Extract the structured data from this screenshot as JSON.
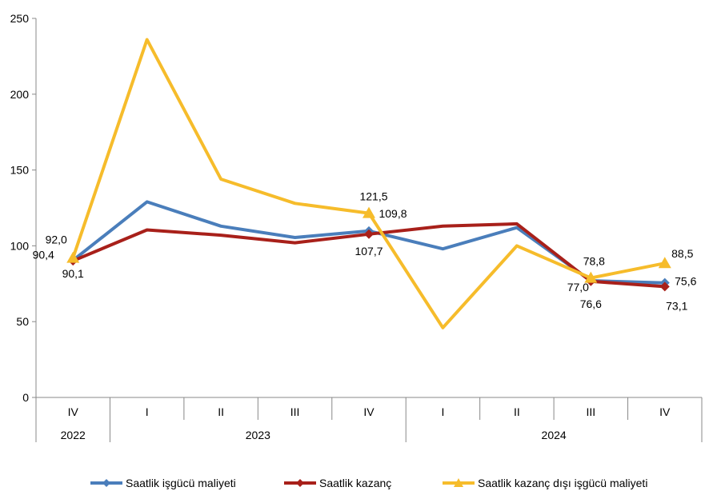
{
  "chart_data": {
    "type": "line",
    "ylim": [
      0,
      250
    ],
    "yticks": [
      "0",
      "50",
      "100",
      "150",
      "200",
      "250"
    ],
    "categories": [
      "IV",
      "I",
      "II",
      "III",
      "IV",
      "I",
      "II",
      "III",
      "IV"
    ],
    "year_groups": [
      {
        "label": "2022",
        "start": 0,
        "end": 0
      },
      {
        "label": "2023",
        "start": 1,
        "end": 4
      },
      {
        "label": "2024",
        "start": 5,
        "end": 8
      }
    ],
    "series": [
      {
        "name": "Saatlik işgücü maliyeti",
        "color": "#4a7ebb",
        "marker": "diamond",
        "values": [
          90.4,
          129,
          113,
          105.5,
          109.8,
          98,
          112,
          77.0,
          75.6
        ],
        "labels": {
          "0": "90,4",
          "4": "109,8",
          "7": "77,0",
          "8": "75,6"
        }
      },
      {
        "name": "Saatlik kazanç",
        "color": "#a8201a",
        "marker": "diamond",
        "values": [
          90.1,
          110.5,
          107,
          102,
          107.7,
          113,
          114.5,
          76.6,
          73.1
        ],
        "labels": {
          "0": "90,1",
          "4": "107,7",
          "7": "76,6",
          "8": "73,1"
        }
      },
      {
        "name": "Saatlik kazanç dışı işgücü maliyeti",
        "color": "#f6bc2b",
        "marker": "triangle",
        "values": [
          92.0,
          236,
          144,
          128,
          121.5,
          46,
          100,
          78.8,
          88.5
        ],
        "labels": {
          "0": "92,0",
          "4": "121,5",
          "7": "78,8",
          "8": "88,5"
        }
      }
    ]
  }
}
